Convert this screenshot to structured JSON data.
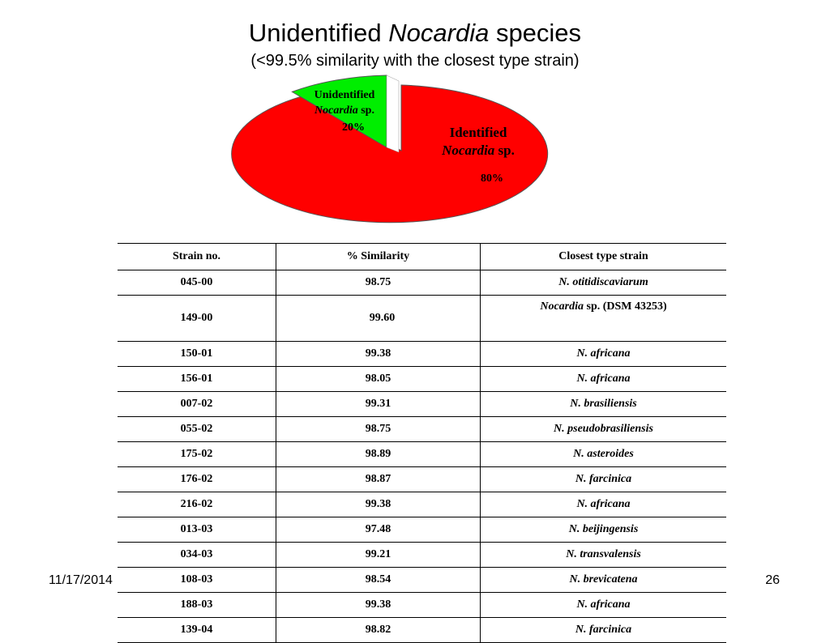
{
  "slide": {
    "title_plain": "Unidentified ",
    "title_italic": "Nocardia",
    "title_end": " species",
    "subtitle": "(<99.5% similarity with the closest type strain)",
    "date": "11/17/2014",
    "page": "26"
  },
  "chart_data": {
    "type": "pie",
    "slices": [
      {
        "label_line1": "Unidentified",
        "label_genus": "Nocardia",
        "label_suffix": " sp.",
        "value": 20,
        "value_label": "20%",
        "color": "#00ee00",
        "exploded": true
      },
      {
        "label_line1": "Identified",
        "label_genus": "Nocardia",
        "label_suffix": " sp.",
        "value": 80,
        "value_label": "80%",
        "color": "#ff0000",
        "exploded": false
      }
    ]
  },
  "table": {
    "headers": [
      "Strain no.",
      "% Similarity",
      "Closest type strain"
    ],
    "rows": [
      {
        "strain": "045-00",
        "similarity": "98.75",
        "closest": "N. otitidiscaviarum"
      },
      {
        "strain": "149-00",
        "similarity": "99.60",
        "closest_genus": "Nocardia",
        "closest_rest": " sp. (DSM 43253)"
      },
      {
        "strain": "150-01",
        "similarity": "99.38",
        "closest": "N. africana"
      },
      {
        "strain": "156-01",
        "similarity": "98.05",
        "closest": "N. africana"
      },
      {
        "strain": "007-02",
        "similarity": "99.31",
        "closest": "N. brasiliensis"
      },
      {
        "strain": "055-02",
        "similarity": "98.75",
        "closest": "N. pseudobrasiliensis"
      },
      {
        "strain": "175-02",
        "similarity": "98.89",
        "closest": "N. asteroides"
      },
      {
        "strain": "176-02",
        "similarity": "98.87",
        "closest": "N. farcinica"
      },
      {
        "strain": "216-02",
        "similarity": "99.38",
        "closest": "N. africana"
      },
      {
        "strain": "013-03",
        "similarity": "97.48",
        "closest": "N. beijingensis"
      },
      {
        "strain": "034-03",
        "similarity": "99.21",
        "closest": "N. transvalensis"
      },
      {
        "strain": "108-03",
        "similarity": "98.54",
        "closest": "N. brevicatena"
      },
      {
        "strain": "188-03",
        "similarity": "99.38",
        "closest": "N. africana"
      },
      {
        "strain": "139-04",
        "similarity": "98.82",
        "closest": "N. farcinica"
      }
    ]
  }
}
